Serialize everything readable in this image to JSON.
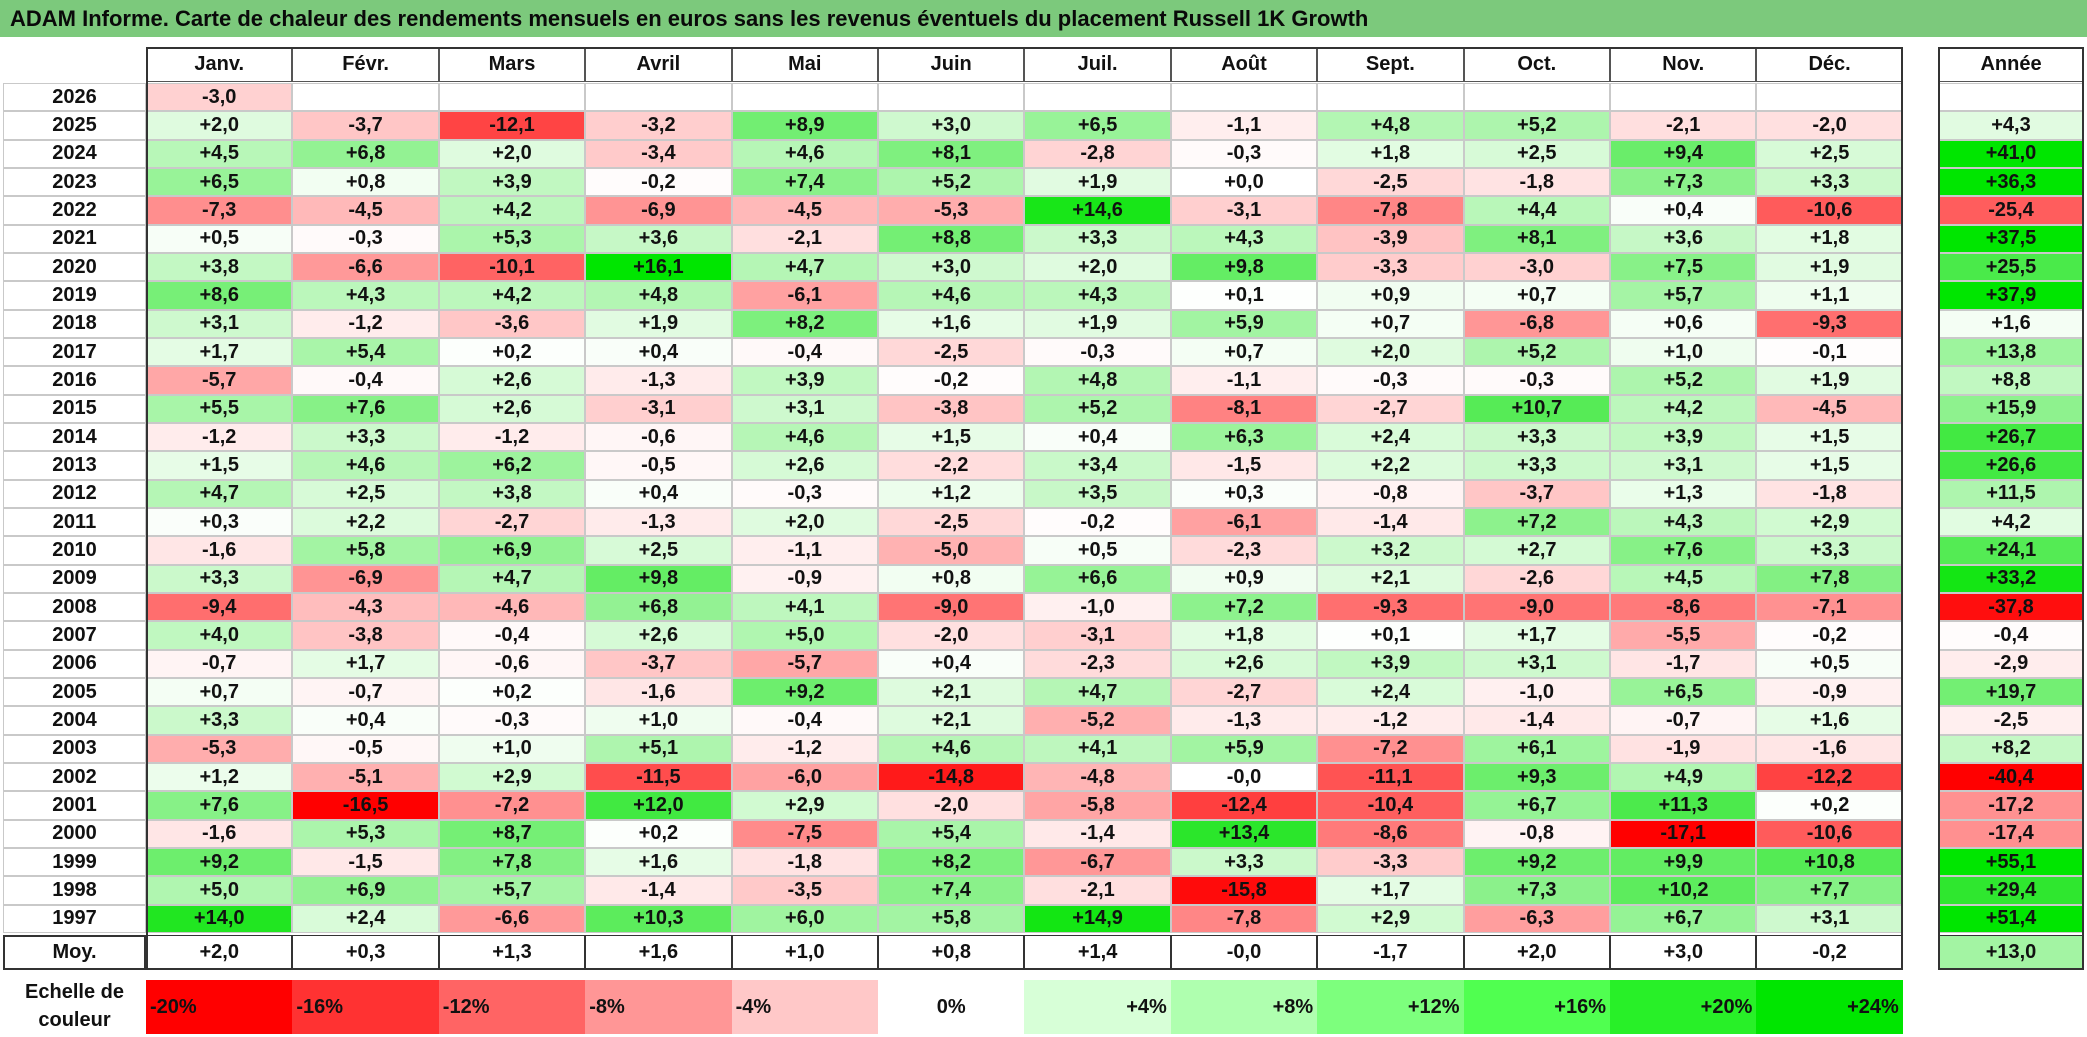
{
  "title": "ADAM Informe. Carte de chaleur des rendements mensuels en euros sans les revenus éventuels du placement Russell 1K Growth",
  "chart_data": {
    "type": "heatmap",
    "months": [
      "Janv.",
      "Févr.",
      "Mars",
      "Avril",
      "Mai",
      "Juin",
      "Juil.",
      "Août",
      "Sept.",
      "Oct.",
      "Nov.",
      "Déc."
    ],
    "year_header": "Année",
    "average_label": "Moy.",
    "rows": [
      {
        "year": "2026",
        "months": [
          "-3,0",
          "",
          "",
          "",
          "",
          "",
          "",
          "",
          "",
          "",
          "",
          ""
        ],
        "annual": ""
      },
      {
        "year": "2025",
        "months": [
          "+2,0",
          "-3,7",
          "-12,1",
          "-3,2",
          "+8,9",
          "+3,0",
          "+6,5",
          "-1,1",
          "+4,8",
          "+5,2",
          "-2,1",
          "-2,0"
        ],
        "annual": "+4,3"
      },
      {
        "year": "2024",
        "months": [
          "+4,5",
          "+6,8",
          "+2,0",
          "-3,4",
          "+4,6",
          "+8,1",
          "-2,8",
          "-0,3",
          "+1,8",
          "+2,5",
          "+9,4",
          "+2,5"
        ],
        "annual": "+41,0"
      },
      {
        "year": "2023",
        "months": [
          "+6,5",
          "+0,8",
          "+3,9",
          "-0,2",
          "+7,4",
          "+5,2",
          "+1,9",
          "+0,0",
          "-2,5",
          "-1,8",
          "+7,3",
          "+3,3"
        ],
        "annual": "+36,3"
      },
      {
        "year": "2022",
        "months": [
          "-7,3",
          "-4,5",
          "+4,2",
          "-6,9",
          "-4,5",
          "-5,3",
          "+14,6",
          "-3,1",
          "-7,8",
          "+4,4",
          "+0,4",
          "-10,6"
        ],
        "annual": "-25,4"
      },
      {
        "year": "2021",
        "months": [
          "+0,5",
          "-0,3",
          "+5,3",
          "+3,6",
          "-2,1",
          "+8,8",
          "+3,3",
          "+4,3",
          "-3,9",
          "+8,1",
          "+3,6",
          "+1,8"
        ],
        "annual": "+37,5"
      },
      {
        "year": "2020",
        "months": [
          "+3,8",
          "-6,6",
          "-10,1",
          "+16,1",
          "+4,7",
          "+3,0",
          "+2,0",
          "+9,8",
          "-3,3",
          "-3,0",
          "+7,5",
          "+1,9"
        ],
        "annual": "+25,5"
      },
      {
        "year": "2019",
        "months": [
          "+8,6",
          "+4,3",
          "+4,2",
          "+4,8",
          "-6,1",
          "+4,6",
          "+4,3",
          "+0,1",
          "+0,9",
          "+0,7",
          "+5,7",
          "+1,1"
        ],
        "annual": "+37,9"
      },
      {
        "year": "2018",
        "months": [
          "+3,1",
          "-1,2",
          "-3,6",
          "+1,9",
          "+8,2",
          "+1,6",
          "+1,9",
          "+5,9",
          "+0,7",
          "-6,8",
          "+0,6",
          "-9,3"
        ],
        "annual": "+1,6"
      },
      {
        "year": "2017",
        "months": [
          "+1,7",
          "+5,4",
          "+0,2",
          "+0,4",
          "-0,4",
          "-2,5",
          "-0,3",
          "+0,7",
          "+2,0",
          "+5,2",
          "+1,0",
          "-0,1"
        ],
        "annual": "+13,8"
      },
      {
        "year": "2016",
        "months": [
          "-5,7",
          "-0,4",
          "+2,6",
          "-1,3",
          "+3,9",
          "-0,2",
          "+4,8",
          "-1,1",
          "-0,3",
          "-0,3",
          "+5,2",
          "+1,9"
        ],
        "annual": "+8,8"
      },
      {
        "year": "2015",
        "months": [
          "+5,5",
          "+7,6",
          "+2,6",
          "-3,1",
          "+3,1",
          "-3,8",
          "+5,2",
          "-8,1",
          "-2,7",
          "+10,7",
          "+4,2",
          "-4,5"
        ],
        "annual": "+15,9"
      },
      {
        "year": "2014",
        "months": [
          "-1,2",
          "+3,3",
          "-1,2",
          "-0,6",
          "+4,6",
          "+1,5",
          "+0,4",
          "+6,3",
          "+2,4",
          "+3,3",
          "+3,9",
          "+1,5"
        ],
        "annual": "+26,7"
      },
      {
        "year": "2013",
        "months": [
          "+1,5",
          "+4,6",
          "+6,2",
          "-0,5",
          "+2,6",
          "-2,2",
          "+3,4",
          "-1,5",
          "+2,2",
          "+3,3",
          "+3,1",
          "+1,5"
        ],
        "annual": "+26,6"
      },
      {
        "year": "2012",
        "months": [
          "+4,7",
          "+2,5",
          "+3,8",
          "+0,4",
          "-0,3",
          "+1,2",
          "+3,5",
          "+0,3",
          "-0,8",
          "-3,7",
          "+1,3",
          "-1,8"
        ],
        "annual": "+11,5"
      },
      {
        "year": "2011",
        "months": [
          "+0,3",
          "+2,2",
          "-2,7",
          "-1,3",
          "+2,0",
          "-2,5",
          "-0,2",
          "-6,1",
          "-1,4",
          "+7,2",
          "+4,3",
          "+2,9"
        ],
        "annual": "+4,2"
      },
      {
        "year": "2010",
        "months": [
          "-1,6",
          "+5,8",
          "+6,9",
          "+2,5",
          "-1,1",
          "-5,0",
          "+0,5",
          "-2,3",
          "+3,2",
          "+2,7",
          "+7,6",
          "+3,3"
        ],
        "annual": "+24,1"
      },
      {
        "year": "2009",
        "months": [
          "+3,3",
          "-6,9",
          "+4,7",
          "+9,8",
          "-0,9",
          "+0,8",
          "+6,6",
          "+0,9",
          "+2,1",
          "-2,6",
          "+4,5",
          "+7,8"
        ],
        "annual": "+33,2"
      },
      {
        "year": "2008",
        "months": [
          "-9,4",
          "-4,3",
          "-4,6",
          "+6,8",
          "+4,1",
          "-9,0",
          "-1,0",
          "+7,2",
          "-9,3",
          "-9,0",
          "-8,6",
          "-7,1"
        ],
        "annual": "-37,8"
      },
      {
        "year": "2007",
        "months": [
          "+4,0",
          "-3,8",
          "-0,4",
          "+2,6",
          "+5,0",
          "-2,0",
          "-3,1",
          "+1,8",
          "+0,1",
          "+1,7",
          "-5,5",
          "-0,2"
        ],
        "annual": "-0,4"
      },
      {
        "year": "2006",
        "months": [
          "-0,7",
          "+1,7",
          "-0,6",
          "-3,7",
          "-5,7",
          "+0,4",
          "-2,3",
          "+2,6",
          "+3,9",
          "+3,1",
          "-1,7",
          "+0,5"
        ],
        "annual": "-2,9"
      },
      {
        "year": "2005",
        "months": [
          "+0,7",
          "-0,7",
          "+0,2",
          "-1,6",
          "+9,2",
          "+2,1",
          "+4,7",
          "-2,7",
          "+2,4",
          "-1,0",
          "+6,5",
          "-0,9"
        ],
        "annual": "+19,7"
      },
      {
        "year": "2004",
        "months": [
          "+3,3",
          "+0,4",
          "-0,3",
          "+1,0",
          "-0,4",
          "+2,1",
          "-5,2",
          "-1,3",
          "-1,2",
          "-1,4",
          "-0,7",
          "+1,6"
        ],
        "annual": "-2,5"
      },
      {
        "year": "2003",
        "months": [
          "-5,3",
          "-0,5",
          "+1,0",
          "+5,1",
          "-1,2",
          "+4,6",
          "+4,1",
          "+5,9",
          "-7,2",
          "+6,1",
          "-1,9",
          "-1,6"
        ],
        "annual": "+8,2"
      },
      {
        "year": "2002",
        "months": [
          "+1,2",
          "-5,1",
          "+2,9",
          "-11,5",
          "-6,0",
          "-14,8",
          "-4,8",
          "-0,0",
          "-11,1",
          "+9,3",
          "+4,9",
          "-12,2"
        ],
        "annual": "-40,4"
      },
      {
        "year": "2001",
        "months": [
          "+7,6",
          "-16,5",
          "-7,2",
          "+12,0",
          "+2,9",
          "-2,0",
          "-5,8",
          "-12,4",
          "-10,4",
          "+6,7",
          "+11,3",
          "+0,2"
        ],
        "annual": "-17,2"
      },
      {
        "year": "2000",
        "months": [
          "-1,6",
          "+5,3",
          "+8,7",
          "+0,2",
          "-7,5",
          "+5,4",
          "-1,4",
          "+13,4",
          "-8,6",
          "-0,8",
          "-17,1",
          "-10,6"
        ],
        "annual": "-17,4"
      },
      {
        "year": "1999",
        "months": [
          "+9,2",
          "-1,5",
          "+7,8",
          "+1,6",
          "-1,8",
          "+8,2",
          "-6,7",
          "+3,3",
          "-3,3",
          "+9,2",
          "+9,9",
          "+10,8"
        ],
        "annual": "+55,1"
      },
      {
        "year": "1998",
        "months": [
          "+5,0",
          "+6,9",
          "+5,7",
          "-1,4",
          "-3,5",
          "+7,4",
          "-2,1",
          "-15,8",
          "+1,7",
          "+7,3",
          "+10,2",
          "+7,7"
        ],
        "annual": "+29,4"
      },
      {
        "year": "1997",
        "months": [
          "+14,0",
          "+2,4",
          "-6,6",
          "+10,3",
          "+6,0",
          "+5,8",
          "+14,9",
          "-7,8",
          "+2,9",
          "-6,3",
          "+6,7",
          "+3,1"
        ],
        "annual": "+51,4"
      }
    ],
    "average": {
      "months": [
        "+2,0",
        "+0,3",
        "+1,3",
        "+1,6",
        "+1,0",
        "+0,8",
        "+1,4",
        "-0,0",
        "-1,7",
        "+2,0",
        "+3,0",
        "-0,2"
      ],
      "annual": "+13,0"
    },
    "legend": {
      "label": "Echelle de couleur",
      "steps": [
        "-20%",
        "-16%",
        "-12%",
        "-8%",
        "-4%",
        "0%",
        "+4%",
        "+8%",
        "+12%",
        "+16%",
        "+20%",
        "+24%"
      ],
      "colors": [
        "#ff0000",
        "#ff3232",
        "#ff6464",
        "#ff9696",
        "#ffc8c8",
        "#ffffff",
        "#d7ffd7",
        "#afffaf",
        "#7dff7d",
        "#50ff50",
        "#28f028",
        "#00e600"
      ]
    }
  }
}
